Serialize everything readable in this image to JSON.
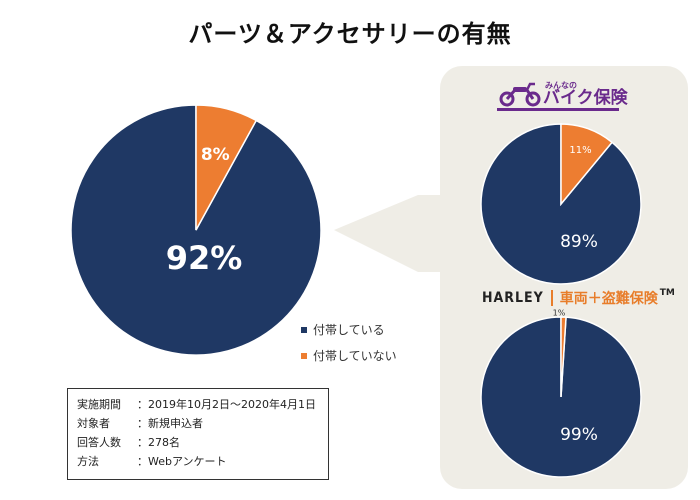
{
  "title": "パーツ＆アクセサリーの有無",
  "colors": {
    "navy": "#1f3864",
    "orange": "#ed7d31",
    "panel": "#efede6"
  },
  "chart_data": [
    {
      "type": "pie",
      "name": "main",
      "categories": [
        "付帯している",
        "付帯していない"
      ],
      "values": [
        92,
        8
      ],
      "labels": [
        "92%",
        "8%"
      ]
    },
    {
      "type": "pie",
      "name": "みんなのバイク保険",
      "categories": [
        "付帯している",
        "付帯していない"
      ],
      "values": [
        89,
        11
      ],
      "labels": [
        "89%",
        "11%"
      ]
    },
    {
      "type": "pie",
      "name": "HARLEY 車両＋盗難保険",
      "categories": [
        "付帯している",
        "付帯していない"
      ],
      "values": [
        99,
        1
      ],
      "labels": [
        "99%",
        "1%"
      ]
    }
  ],
  "legend": [
    {
      "label": "付帯している"
    },
    {
      "label": "付帯していない"
    }
  ],
  "brand1": {
    "small": "みんなの",
    "name": "バイク保険"
  },
  "brand2": {
    "name": "HARLEY",
    "product": "車両＋盗難保険",
    "tm": "TM"
  },
  "survey": [
    {
      "key": "実施期間",
      "value": "：2019年10月2日〜2020年4月1日"
    },
    {
      "key": "対象者　",
      "value": "：新規申込者"
    },
    {
      "key": "回答人数",
      "value": "：278名"
    },
    {
      "key": "方法　　",
      "value": "：Webアンケート"
    }
  ]
}
